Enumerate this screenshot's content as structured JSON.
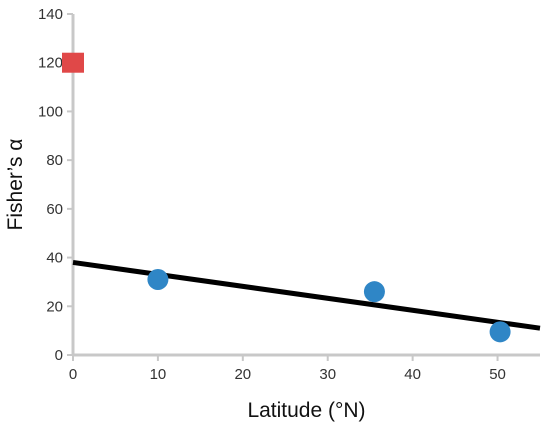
{
  "chart_data": {
    "type": "scatter",
    "xlabel": "Latitude (°N)",
    "ylabel": "Fisher’s α",
    "xlim": [
      0,
      55
    ],
    "ylim": [
      0,
      140
    ],
    "x_ticks": [
      0,
      10,
      20,
      30,
      40,
      50
    ],
    "y_ticks": [
      0,
      20,
      40,
      60,
      80,
      100,
      120,
      140
    ],
    "grid": false,
    "series": [
      {
        "marker": "circle",
        "color": "#2f86c6",
        "points": [
          {
            "x": 10,
            "y": 31
          },
          {
            "x": 35.5,
            "y": 26
          },
          {
            "x": 50.3,
            "y": 9.5
          }
        ]
      },
      {
        "marker": "square",
        "color": "#e04848",
        "points": [
          {
            "x": 0,
            "y": 120
          }
        ]
      }
    ],
    "trendline": {
      "color": "#000000",
      "points": [
        {
          "x": 0,
          "y": 38
        },
        {
          "x": 55,
          "y": 11
        }
      ]
    }
  }
}
